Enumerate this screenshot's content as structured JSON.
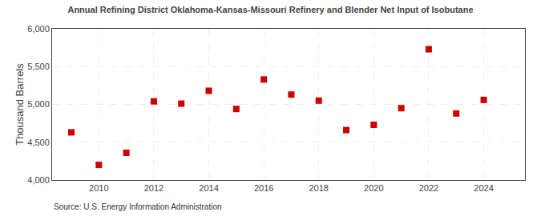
{
  "chart_data": {
    "type": "scatter",
    "title": "Annual Refining District Oklahoma-Kansas-Missouri Refinery and Blender Net Input of Isobutane",
    "ylabel": "Thousand Barrels",
    "annotations": [
      "Source: U.S. Energy Information Administration"
    ],
    "x": [
      2009,
      2010,
      2011,
      2012,
      2013,
      2014,
      2015,
      2016,
      2017,
      2018,
      2019,
      2020,
      2021,
      2022,
      2023,
      2024
    ],
    "values": [
      4630,
      4200,
      4360,
      5040,
      5010,
      5180,
      4940,
      5330,
      5130,
      5050,
      4660,
      4730,
      4950,
      5730,
      4880,
      5060
    ],
    "color": "#cc0000",
    "marker": "square",
    "xlim": [
      2008.3,
      2025.5
    ],
    "xticks": [
      2010,
      2012,
      2014,
      2016,
      2018,
      2020,
      2022,
      2024
    ],
    "ylim": [
      4000,
      6000
    ],
    "yticks": [
      {
        "value": 4000,
        "label": "4,000"
      },
      {
        "value": 4500,
        "label": "4,500"
      },
      {
        "value": 5000,
        "label": "5,000"
      },
      {
        "value": 5500,
        "label": "5,500"
      },
      {
        "value": 6000,
        "label": "6,000"
      }
    ],
    "grid": true
  }
}
